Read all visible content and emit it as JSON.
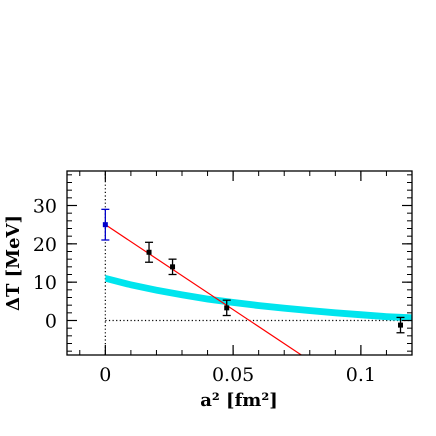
{
  "chart_data": {
    "type": "scatter",
    "xlabel": "a² [fm²]",
    "ylabel": "ΔT [MeV]",
    "xlim": [
      -0.015,
      0.12
    ],
    "ylim": [
      -9,
      39
    ],
    "x_ticks": [
      {
        "value": 0,
        "label": "0"
      },
      {
        "value": 0.05,
        "label": "0.05"
      },
      {
        "value": 0.1,
        "label": "0.1"
      }
    ],
    "y_ticks": [
      {
        "value": 0,
        "label": "0"
      },
      {
        "value": 10,
        "label": "10"
      },
      {
        "value": 20,
        "label": "20"
      },
      {
        "value": 30,
        "label": "30"
      }
    ],
    "grid": false,
    "series": [
      {
        "kind": "points",
        "color": "#000000",
        "points": [
          {
            "x": 0.0171,
            "y": 17.8,
            "err": 2.6
          },
          {
            "x": 0.0263,
            "y": 14.0,
            "err": 2.0
          },
          {
            "x": 0.0475,
            "y": 3.3,
            "err": 2.0
          },
          {
            "x": 0.1155,
            "y": -1.2,
            "err": 2.0
          }
        ]
      },
      {
        "kind": "extrapolated_point",
        "color": "#0000cc",
        "points": [
          {
            "x": 0.0,
            "y": 25.0,
            "err": 4.0
          }
        ]
      },
      {
        "kind": "fit_line",
        "color": "#ff0000",
        "x": [
          0.0,
          0.0767
        ],
        "y": [
          25.0,
          -9.0
        ]
      },
      {
        "kind": "band",
        "color": "#00e5ee",
        "x": [
          0.0,
          0.01,
          0.02,
          0.03,
          0.04,
          0.05,
          0.06,
          0.07,
          0.08,
          0.09,
          0.1,
          0.11,
          0.12
        ],
        "y": [
          11.0,
          9.3,
          7.9,
          6.7,
          5.6,
          4.7,
          3.9,
          3.2,
          2.6,
          2.0,
          1.5,
          1.0,
          0.7
        ],
        "width": 1.8
      },
      {
        "kind": "reference_line",
        "style": "dotted",
        "color": "#000000",
        "x": [
          0.0,
          0.12
        ],
        "y": [
          0.0,
          0.0
        ]
      },
      {
        "kind": "reference_line",
        "style": "dotted",
        "color": "#000000",
        "x": [
          0.0,
          0.0
        ],
        "y": [
          -9.0,
          39.0
        ]
      }
    ]
  }
}
